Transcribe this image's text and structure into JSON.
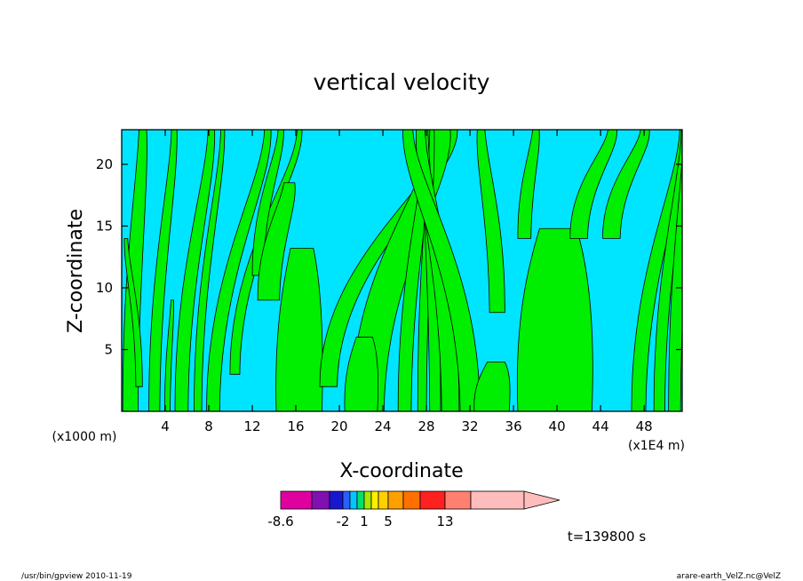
{
  "chart_data": {
    "type": "heatmap",
    "title": "vertical velocity",
    "xlabel": "X-coordinate",
    "ylabel": "Z-coordinate",
    "x_scale_note": "(x1E4 m)",
    "y_scale_note": "(x1000 m)",
    "xlim": [
      0,
      51.5
    ],
    "ylim": [
      0,
      22.8
    ],
    "x_ticks": [
      "4",
      "8",
      "12",
      "16",
      "20",
      "24",
      "28",
      "32",
      "36",
      "40",
      "44",
      "48"
    ],
    "y_ticks": [
      "5",
      "10",
      "15",
      "20"
    ],
    "fill_regions": {
      "positive_color": "#00ee00",
      "negative_color": "#00e5ff"
    },
    "colorbar": {
      "colors": [
        "#e000a0",
        "#8010b0",
        "#1818d0",
        "#2860ff",
        "#00c8ff",
        "#00e070",
        "#a8e800",
        "#ffee00",
        "#ffd000",
        "#ffa000",
        "#ff7000",
        "#ff2020",
        "#ff8070",
        "#ffbcbc"
      ],
      "tick_labels": [
        "-8.6",
        "-2",
        "1",
        "5",
        "13"
      ],
      "extend": "max"
    },
    "time_label": "t=139800 s"
  },
  "footer": {
    "left": "/usr/bin/gpview   2010-11-19",
    "right": "arare-earth_VelZ.nc@VelZ"
  }
}
